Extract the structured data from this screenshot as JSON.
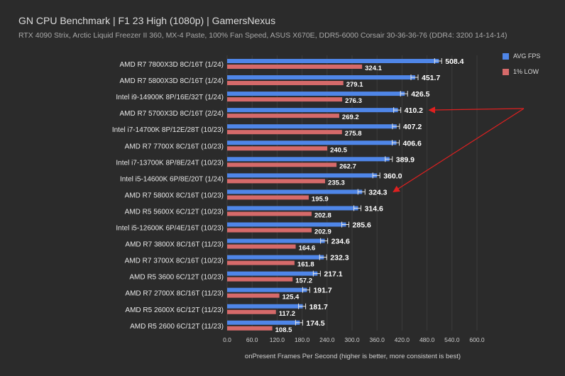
{
  "chart_data": {
    "type": "bar",
    "title": "GN CPU Benchmark | F1 23 High (1080p) | GamersNexus",
    "subtitle": "RTX 4090 Strix, Arctic Liquid Freezer II 360, MX-4 Paste, 100% Fan Speed, ASUS X670E, DDR5-6000 Corsair 30-36-36-76 (DDR4: 3200 14-14-14)",
    "xlabel": "onPresent Frames Per Second (higher is better, more consistent is best)",
    "xlim": [
      0,
      600
    ],
    "xticks": [
      "0.0",
      "60.0",
      "120.0",
      "180.0",
      "240.0",
      "300.0",
      "360.0",
      "420.0",
      "480.0",
      "540.0",
      "600.0"
    ],
    "orientation": "horizontal",
    "legend_position": "top-right",
    "categories": [
      "AMD R7 7800X3D 8C/16T (1/24)",
      "AMD R7 5800X3D 8C/16T (1/24)",
      "Intel i9-14900K 8P/16E/32T (1/24)",
      "AMD R7 5700X3D 8C/16T (2/24)",
      "Intel i7-14700K 8P/12E/28T (10/23)",
      "AMD R7 7700X 8C/16T (10/23)",
      "Intel i7-13700K 8P/8E/24T (10/23)",
      "Intel i5-14600K 6P/8E/20T (1/24)",
      "AMD R7 5800X 8C/16T (10/23)",
      "AMD R5 5600X 6C/12T (10/23)",
      "Intel i5-12600K 6P/4E/16T (10/23)",
      "AMD R7 3800X 8C/16T (11/23)",
      "AMD R7 3700X 8C/16T (10/23)",
      "AMD R5 3600 6C/12T (10/23)",
      "AMD R7 2700X 8C/16T (11/23)",
      "AMD R5 2600X 6C/12T (11/23)",
      "AMD R5 2600 6C/12T (11/23)"
    ],
    "series": [
      {
        "name": "AVG FPS",
        "color": "#4f86e8",
        "values": [
          508.4,
          451.7,
          426.5,
          410.2,
          407.2,
          406.6,
          389.9,
          360.0,
          324.3,
          314.6,
          285.6,
          234.6,
          232.3,
          217.1,
          191.7,
          181.7,
          174.5
        ],
        "labels": [
          "508.4",
          "451.7",
          "426.5",
          "410.2",
          "407.2",
          "406.6",
          "389.9",
          "360.0",
          "324.3",
          "314.6",
          "285.6",
          "234.6",
          "232.3",
          "217.1",
          "191.7",
          "181.7",
          "174.5"
        ]
      },
      {
        "name": "1% LOW",
        "color": "#d66a6a",
        "values": [
          324.1,
          279.1,
          276.3,
          269.2,
          275.8,
          240.5,
          262.7,
          235.3,
          195.9,
          202.8,
          202.9,
          164.6,
          161.8,
          157.2,
          125.4,
          117.2,
          108.5
        ],
        "labels": [
          "324.1",
          "279.1",
          "276.3",
          "269.2",
          "275.8",
          "240.5",
          "262.7",
          "235.3",
          "195.9",
          "202.8",
          "202.9",
          "164.6",
          "161.8",
          "157.2",
          "125.4",
          "117.2",
          "108.5"
        ]
      }
    ],
    "annotations": [
      {
        "type": "arrow",
        "color": "#e02020",
        "target_category": "AMD R7 5700X3D 8C/16T (2/24)"
      },
      {
        "type": "arrow",
        "color": "#e02020",
        "target_category": "AMD R7 5800X 8C/16T (10/23)"
      }
    ]
  }
}
